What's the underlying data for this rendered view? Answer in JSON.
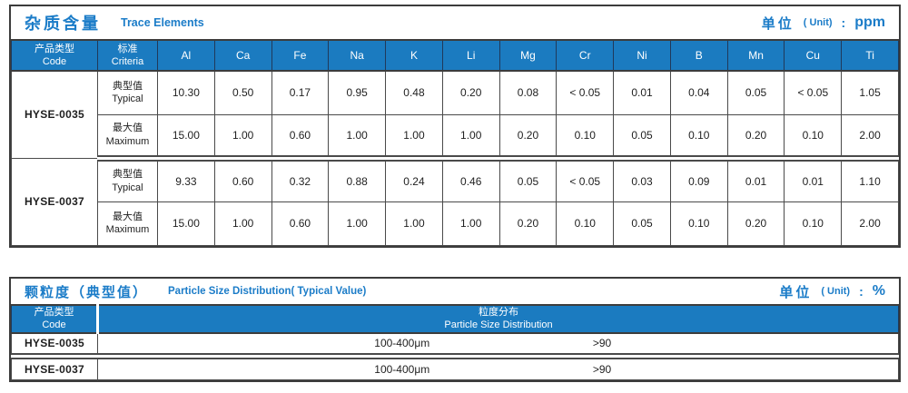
{
  "colors": {
    "accent_blue": "#1b7bc0",
    "title_blue": "#1b7cc8",
    "header_text": "#ffffff",
    "body_text": "#1f1f1f",
    "border_dark": "#3c3c3c"
  },
  "trace_table": {
    "title_cn": "杂质含量",
    "title_en": "Trace Elements",
    "unit_cn": "单位",
    "unit_paren": "( Unit)",
    "unit_colon": ":",
    "unit_value": "ppm",
    "code_header_cn": "产品类型",
    "code_header_en": "Code",
    "criteria_header_cn": "标准",
    "criteria_header_en": "Criteria",
    "elements": [
      "Al",
      "Ca",
      "Fe",
      "Na",
      "K",
      "Li",
      "Mg",
      "Cr",
      "Ni",
      "B",
      "Mn",
      "Cu",
      "Ti"
    ],
    "groups": [
      {
        "code": "HYSE-0035",
        "rows": [
          {
            "label_cn": "典型值",
            "label_en": "Typical",
            "values": [
              "10.30",
              "0.50",
              "0.17",
              "0.95",
              "0.48",
              "0.20",
              "0.08",
              "< 0.05",
              "0.01",
              "0.04",
              "0.05",
              "< 0.05",
              "1.05"
            ]
          },
          {
            "label_cn": "最大值",
            "label_en": "Maximum",
            "values": [
              "15.00",
              "1.00",
              "0.60",
              "1.00",
              "1.00",
              "1.00",
              "0.20",
              "0.10",
              "0.05",
              "0.10",
              "0.20",
              "0.10",
              "2.00"
            ]
          }
        ]
      },
      {
        "code": "HYSE-0037",
        "rows": [
          {
            "label_cn": "典型值",
            "label_en": "Typical",
            "values": [
              "9.33",
              "0.60",
              "0.32",
              "0.88",
              "0.24",
              "0.46",
              "0.05",
              "< 0.05",
              "0.03",
              "0.09",
              "0.01",
              "0.01",
              "1.10"
            ]
          },
          {
            "label_cn": "最大值",
            "label_en": "Maximum",
            "values": [
              "15.00",
              "1.00",
              "0.60",
              "1.00",
              "1.00",
              "1.00",
              "0.20",
              "0.10",
              "0.05",
              "0.10",
              "0.20",
              "0.10",
              "2.00"
            ]
          }
        ]
      }
    ]
  },
  "particle_table": {
    "title_cn": "颗粒度（典型值）",
    "title_en": "Particle Size Distribution( Typical Value)",
    "unit_cn": "单位",
    "unit_paren": "( Unit)",
    "unit_colon": ":",
    "unit_value": "%",
    "code_header_cn": "产品类型",
    "code_header_en": "Code",
    "dist_header_cn": "粒度分布",
    "dist_header_en": "Particle Size  Distribution",
    "rows": [
      {
        "code": "HYSE-0035",
        "range": "100-400μm",
        "value": ">90"
      },
      {
        "code": "HYSE-0037",
        "range": "100-400μm",
        "value": ">90"
      }
    ]
  }
}
